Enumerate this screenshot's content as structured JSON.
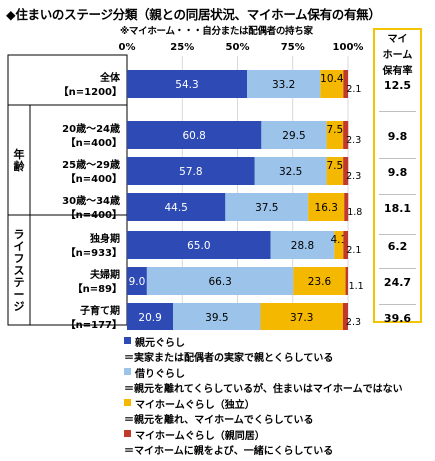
{
  "title": "◆住まいのステージ分類（親との同居状況、マイホーム保有の有無）",
  "subtitle": "※マイホーム・・・自分または配偶者の持ち家",
  "column_header": [
    "マイ",
    "ホーム",
    "保有率"
  ],
  "colors": {
    "parents": "#2e4bb5",
    "rent": "#9cc4ea",
    "own_independent": "#f5b800",
    "own_with_parents": "#c0392b",
    "accent_border": "#f5c400"
  },
  "chart_data": {
    "type": "bar",
    "orientation": "horizontal",
    "stacked": true,
    "x_ticks": [
      "0%",
      "25%",
      "50%",
      "75%",
      "100%"
    ],
    "xlim": [
      0,
      100
    ],
    "groups": [
      {
        "label": "",
        "rows": [
          0
        ]
      },
      {
        "label": "年齢",
        "rows": [
          1,
          2,
          3
        ]
      },
      {
        "label": "ライフステージ",
        "rows": [
          4,
          5,
          6
        ]
      }
    ],
    "categories": [
      {
        "name": "全体",
        "n": "【n=1200】"
      },
      {
        "name": "20歳～24歳",
        "n": "【n=400】"
      },
      {
        "name": "25歳～29歳",
        "n": "【n=400】"
      },
      {
        "name": "30歳～34歳",
        "n": "【n=400】"
      },
      {
        "name": "独身期",
        "n": "【n=933】"
      },
      {
        "name": "夫婦期",
        "n": "【n=89】"
      },
      {
        "name": "子育て期",
        "n": "【n=177】"
      }
    ],
    "series": [
      {
        "name": "親元ぐらし",
        "description": "＝実家または配偶者の実家で親とくらしている",
        "values": [
          54.3,
          60.8,
          57.8,
          44.5,
          65.0,
          9.0,
          20.9
        ]
      },
      {
        "name": "借りぐらし",
        "description": "＝親元を離れてくらしているが、住まいはマイホームではない",
        "values": [
          33.2,
          29.5,
          32.5,
          37.5,
          28.8,
          66.3,
          39.5
        ]
      },
      {
        "name": "マイホームぐらし（独立）",
        "description": "＝親元を離れ、マイホームでくらしている",
        "values": [
          10.4,
          7.5,
          7.5,
          16.3,
          4.1,
          23.6,
          37.3
        ]
      },
      {
        "name": "マイホームぐらし（親同居）",
        "description": "＝マイホームに親をよび、一緒にくらしている",
        "values": [
          2.1,
          2.3,
          2.3,
          1.8,
          2.1,
          1.1,
          2.3
        ]
      }
    ],
    "value_labels": [
      [
        "54.3",
        "33.2",
        "10.4",
        "2.1"
      ],
      [
        "60.8",
        "29.5",
        "7.5",
        "2.3"
      ],
      [
        "57.8",
        "32.5",
        "7.5",
        "2.3"
      ],
      [
        "44.5",
        "37.5",
        "16.3",
        "1.8"
      ],
      [
        "65.0",
        "28.8",
        "4.1",
        "2.1"
      ],
      [
        "9.0",
        "66.3",
        "23.6",
        "1.1"
      ],
      [
        "20.9",
        "39.5",
        "37.3",
        "2.3"
      ]
    ],
    "myhome_rate_labels": [
      "12.5",
      "9.8",
      "9.8",
      "18.1",
      "6.2",
      "24.7",
      "39.6"
    ]
  }
}
